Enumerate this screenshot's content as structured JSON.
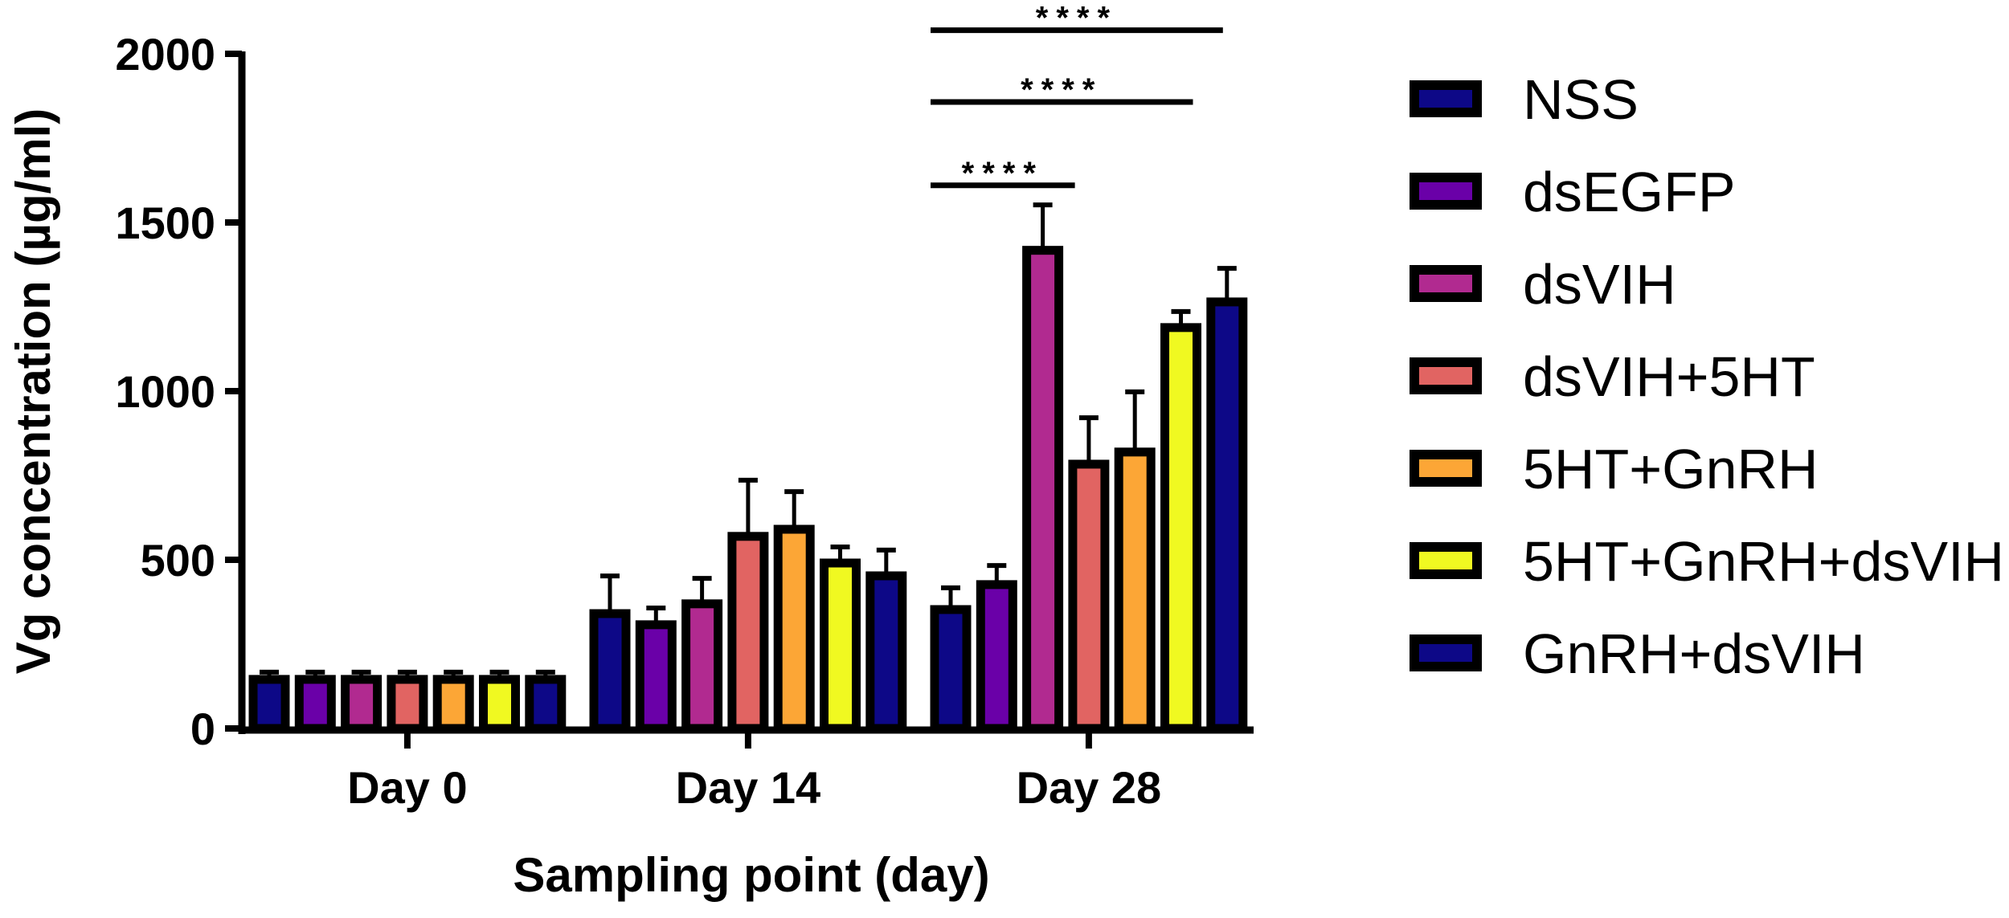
{
  "chart_data": {
    "type": "bar",
    "title": "",
    "xlabel": "Sampling point (day)",
    "ylabel": "Vg concentration (µg/ml)",
    "ylim": [
      0,
      2000
    ],
    "yticks": [
      "0",
      "500",
      "1000",
      "1500",
      "2000"
    ],
    "ytick_values": [
      0,
      500,
      1000,
      1500,
      2000
    ],
    "categories": [
      "Day 0",
      "Day 14",
      "Day 28"
    ],
    "legend_position": "right",
    "series": [
      {
        "name": "NSS",
        "color": "#0d0887",
        "values": [
          155,
          350,
          362
        ],
        "errors": [
          12,
          102,
          55
        ]
      },
      {
        "name": "dsEGFP",
        "color": "#6a00a8",
        "values": [
          155,
          317,
          436
        ],
        "errors": [
          12,
          40,
          47
        ]
      },
      {
        "name": "dsVIH",
        "color": "#b12a90",
        "values": [
          155,
          379,
          1427
        ],
        "errors": [
          12,
          66,
          125
        ]
      },
      {
        "name": "dsVIH+5HT",
        "color": "#e16462",
        "values": [
          155,
          579,
          793
        ],
        "errors": [
          12,
          157,
          128
        ]
      },
      {
        "name": "5HT+GnRH",
        "color": "#fca636",
        "values": [
          155,
          600,
          829
        ],
        "errors": [
          12,
          102,
          169
        ]
      },
      {
        "name": "5HT+GnRH+dsVIH",
        "color": "#f0f921",
        "values": [
          155,
          500,
          1198
        ],
        "errors": [
          12,
          38,
          38
        ]
      },
      {
        "name": "GnRH+dsVIH",
        "color": "#0d0887",
        "values": [
          155,
          462,
          1274
        ],
        "errors": [
          12,
          67,
          90
        ]
      }
    ],
    "annotations": [
      {
        "text": "****",
        "category": "Day 28",
        "from": "NSS",
        "to": "dsVIH",
        "level": 1610
      },
      {
        "text": "****",
        "category": "Day 28",
        "from": "NSS",
        "to": "5HT+GnRH+dsVIH",
        "level": 1857
      },
      {
        "text": "****",
        "category": "Day 28",
        "from": "NSS",
        "to": "GnRH+dsVIH",
        "level": 2070
      }
    ]
  }
}
